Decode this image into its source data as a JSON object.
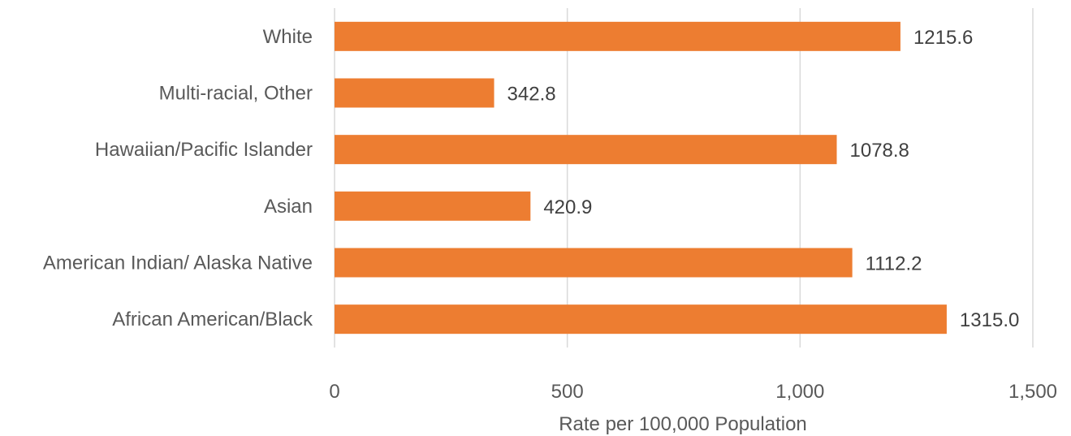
{
  "chart_data": {
    "type": "bar",
    "orientation": "horizontal",
    "categories": [
      "White",
      "Multi-racial, Other",
      "Hawaiian/Pacific Islander",
      "Asian",
      "American Indian/ Alaska Native",
      "African American/Black"
    ],
    "values": [
      1215.6,
      342.8,
      1078.8,
      420.9,
      1112.2,
      1315.0
    ],
    "data_labels": [
      "1215.6",
      "342.8",
      "1078.8",
      "420.9",
      "1112.2",
      "1315.0"
    ],
    "xlabel": "Rate per 100,000 Population",
    "ylabel": "",
    "xlim": [
      0,
      1500
    ],
    "xticks": [
      0,
      500,
      1000,
      1500
    ],
    "xtick_labels": [
      "0",
      "500",
      "1,000",
      "1,500"
    ],
    "grid": "vertical",
    "legend": "none",
    "bar_color": "#ED7D31"
  }
}
